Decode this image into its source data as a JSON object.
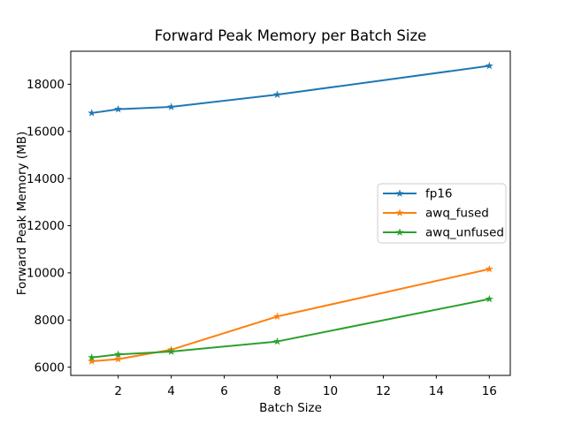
{
  "chart_data": {
    "type": "line",
    "title": "Forward Peak Memory per Batch Size",
    "xlabel": "Batch Size",
    "ylabel": "Forward Peak Memory (MB)",
    "x": [
      1,
      2,
      4,
      8,
      16
    ],
    "series": [
      {
        "name": "fp16",
        "color": "#1f77b4",
        "values": [
          16780,
          16940,
          17040,
          17560,
          18780
        ]
      },
      {
        "name": "awq_fused",
        "color": "#ff7f0e",
        "values": [
          6250,
          6340,
          6740,
          8150,
          10160
        ]
      },
      {
        "name": "awq_unfused",
        "color": "#2ca02c",
        "values": [
          6410,
          6540,
          6660,
          7090,
          8890
        ]
      }
    ],
    "xticks": [
      2,
      4,
      6,
      8,
      10,
      12,
      14,
      16
    ],
    "yticks": [
      6000,
      8000,
      10000,
      12000,
      14000,
      16000,
      18000
    ],
    "xlim": [
      0.21,
      16.79
    ],
    "ylim": [
      5650,
      19400
    ],
    "marker": "star",
    "grid": false,
    "legend_position": "center-right",
    "colors": {
      "axis": "#000000",
      "legend_border": "#cccccc",
      "background": "#ffffff"
    }
  }
}
